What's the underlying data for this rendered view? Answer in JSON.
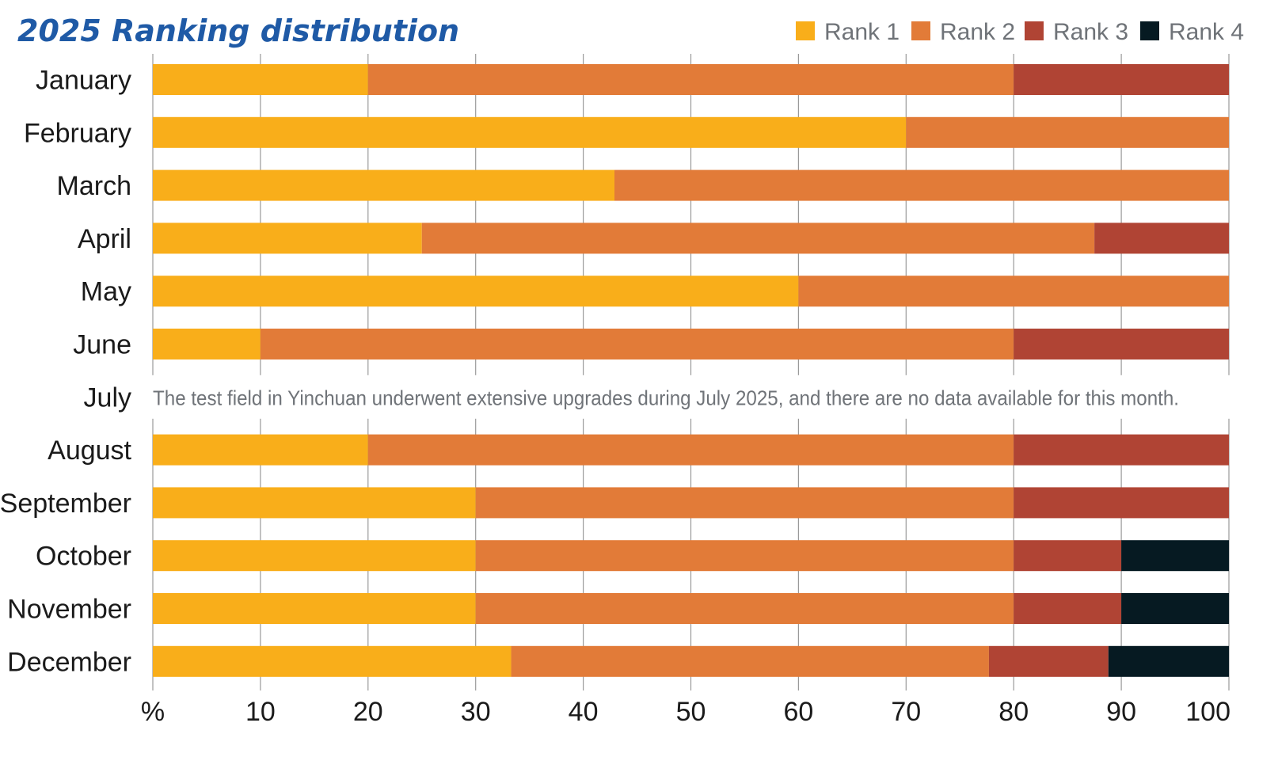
{
  "chart_data": {
    "type": "bar",
    "orientation": "horizontal",
    "stacked": true,
    "title": "2025 Ranking distribution",
    "xlabel": "",
    "ylabel": "",
    "xlim": [
      0,
      100
    ],
    "x_ticks": [
      "%",
      "10",
      "20",
      "30",
      "40",
      "50",
      "60",
      "70",
      "80",
      "90",
      "100"
    ],
    "grid": true,
    "legend_position": "top-right",
    "categories": [
      "January",
      "February",
      "March",
      "April",
      "May",
      "June",
      "July",
      "August",
      "September",
      "October",
      "November",
      "December"
    ],
    "series": [
      {
        "name": "Rank 1",
        "color": "#f9ae1a",
        "values": [
          20,
          70,
          42.9,
          25,
          60,
          10,
          null,
          20,
          30,
          30,
          30,
          33.3
        ]
      },
      {
        "name": "Rank 2",
        "color": "#e27b38",
        "values": [
          60,
          30,
          57.1,
          62.5,
          40,
          70,
          null,
          60,
          50,
          50,
          50,
          44.4
        ]
      },
      {
        "name": "Rank 3",
        "color": "#b04434",
        "values": [
          20,
          0,
          0,
          12.5,
          0,
          20,
          null,
          20,
          20,
          10,
          10,
          11.1
        ]
      },
      {
        "name": "Rank 4",
        "color": "#061a22",
        "values": [
          0,
          0,
          0,
          0,
          0,
          0,
          null,
          0,
          0,
          10,
          10,
          11.2
        ]
      }
    ],
    "annotations": [
      {
        "category": "July",
        "text": "The test field in Yinchuan underwent extensive upgrades during July 2025, and there are no data available for this month."
      }
    ]
  }
}
